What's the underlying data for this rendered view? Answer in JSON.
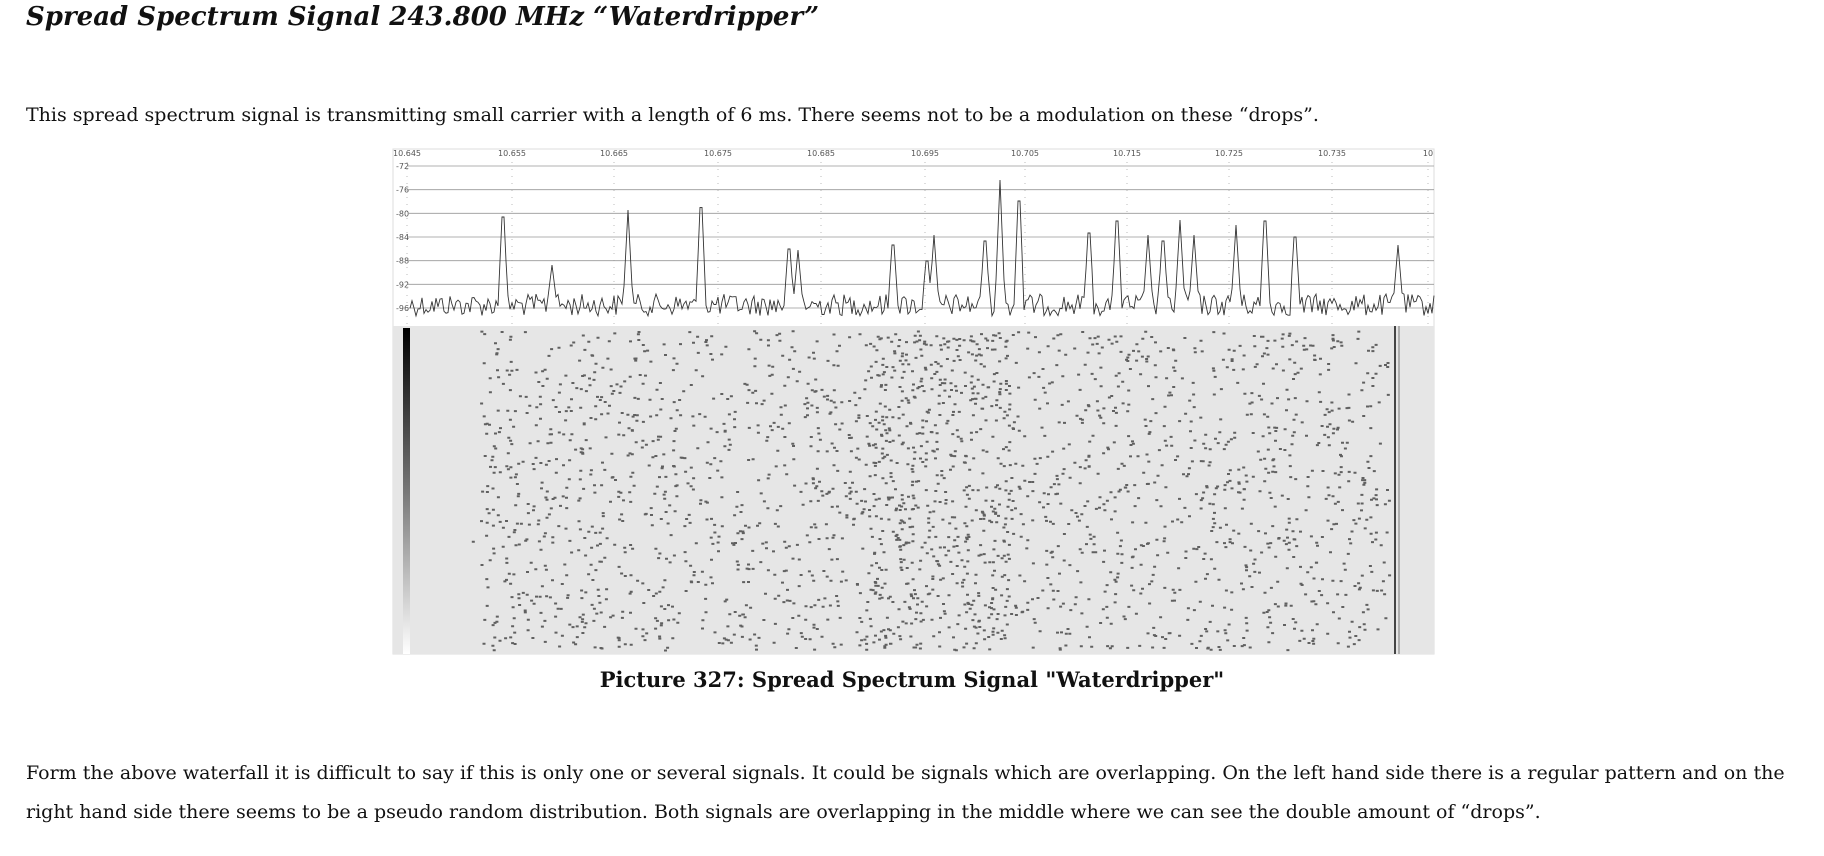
{
  "title": "Spread Spectrum Signal 243.800 MHz “Waterdripper”",
  "paragraphs": [
    "This spread spectrum signal is transmitting small carrier with a length of 6 ms. There seems not to be a modulation on these “drops”.",
    "Form the above waterfall it is difficult to say if this is only one or several signals. It could be signals which are overlapping. On the left hand side there is a regular pattern and on the right hand side there seems to be a pseudo random distribution. Both signals are overlapping in the middle where we can see the double amount of “drops”."
  ],
  "figure": {
    "x_labels": [
      "10.645",
      "10.655",
      "10.665",
      "10.675",
      "10.685",
      "10.695",
      "10.705",
      "10.715",
      "10.725",
      "10.735",
      "10"
    ],
    "y_labels": [
      "-72",
      "-76",
      "-80",
      "-84",
      "-88",
      "-92",
      "-96"
    ],
    "caption": "Picture 327: Spread Spectrum Signal \"Waterdripper\""
  }
}
